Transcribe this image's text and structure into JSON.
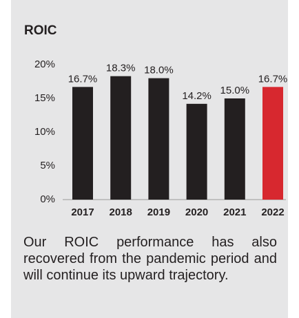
{
  "chart_data": {
    "type": "bar",
    "title": "ROIC",
    "categories": [
      "2017",
      "2018",
      "2019",
      "2020",
      "2021",
      "2022"
    ],
    "values": [
      16.7,
      18.3,
      18.0,
      14.2,
      15.0,
      16.7
    ],
    "value_labels": [
      "16.7%",
      "18.3%",
      "18.0%",
      "14.2%",
      "15.0%",
      "16.7%"
    ],
    "colors": [
      "#231f20",
      "#231f20",
      "#231f20",
      "#231f20",
      "#231f20",
      "#d7282f"
    ],
    "ylim": [
      0,
      20
    ],
    "yticks": [
      {
        "value": 0,
        "label": "0%"
      },
      {
        "value": 5,
        "label": "5%"
      },
      {
        "value": 10,
        "label": "10%"
      },
      {
        "value": 15,
        "label": "15%"
      },
      {
        "value": 20,
        "label": "20%"
      }
    ],
    "grid": false
  },
  "paragraph": "Our ROIC performance has also recovered from the pandemic period and will continue its upward trajectory."
}
